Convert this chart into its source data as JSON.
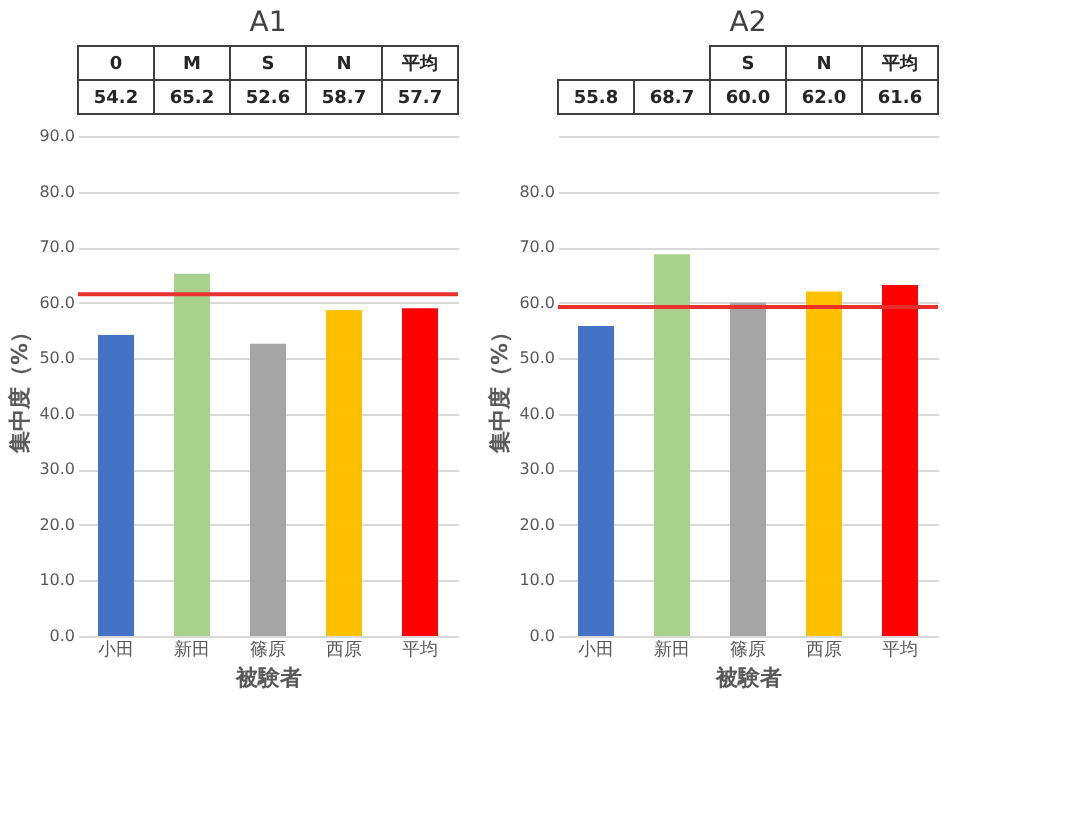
{
  "chart_data": [
    {
      "type": "bar",
      "title": "A1",
      "xlabel": "被験者",
      "ylabel": "集中度（%）",
      "categories": [
        "小田",
        "新田",
        "篠原",
        "西原",
        "平均"
      ],
      "values": [
        54.2,
        65.2,
        52.6,
        58.7,
        59.0
      ],
      "colors": [
        "#4472c4",
        "#a9d18e",
        "#a5a5a5",
        "#ffc000",
        "#ff0000"
      ],
      "ylim": [
        0,
        90
      ],
      "yticks": [
        {
          "value": 0,
          "label": "0.0"
        },
        {
          "value": 10,
          "label": "10.0"
        },
        {
          "value": 20,
          "label": "20.0"
        },
        {
          "value": 30,
          "label": "30.0"
        },
        {
          "value": 40,
          "label": "40.0"
        },
        {
          "value": 50,
          "label": "50.0"
        },
        {
          "value": 60,
          "label": "60.0"
        },
        {
          "value": 70,
          "label": "70.0"
        },
        {
          "value": 80,
          "label": "80.0"
        },
        {
          "value": 90,
          "label": "90.0"
        }
      ],
      "grid": "y",
      "ref_lines": [
        {
          "axis": "y",
          "value": 61.5,
          "color": "#e8302c"
        }
      ],
      "annotations": [
        "0",
        "M",
        "S",
        "N",
        "平均",
        "54.2",
        "65.2",
        "52.6",
        "58.7",
        "57.7"
      ]
    },
    {
      "type": "bar",
      "title": "A2",
      "xlabel": "被験者",
      "ylabel": "集中度（%）",
      "categories": [
        "小田",
        "新田",
        "篠原",
        "西原",
        "平均"
      ],
      "values": [
        55.8,
        68.7,
        60.0,
        62.0,
        63.2
      ],
      "colors": [
        "#4472c4",
        "#a9d18e",
        "#a5a5a5",
        "#ffc000",
        "#ff0000"
      ],
      "ylim": [
        0,
        90
      ],
      "yticks": [
        {
          "value": 0,
          "label": "0.0"
        },
        {
          "value": 10,
          "label": "10.0"
        },
        {
          "value": 20,
          "label": "20.0"
        },
        {
          "value": 30,
          "label": "30.0"
        },
        {
          "value": 40,
          "label": "40.0"
        },
        {
          "value": 50,
          "label": "50.0"
        },
        {
          "value": 60,
          "label": "60.0"
        },
        {
          "value": 70,
          "label": "70.0"
        },
        {
          "value": 80,
          "label": "80.0"
        },
        {
          "value": 90,
          "label": null
        }
      ],
      "grid": "y",
      "ref_lines": [
        {
          "axis": "y",
          "value": 59.2,
          "color": "#e8302c"
        }
      ],
      "annotations": [
        "S",
        "N",
        "平均",
        "55.8",
        "68.7",
        "60.0",
        "62.0",
        "61.6"
      ]
    }
  ]
}
